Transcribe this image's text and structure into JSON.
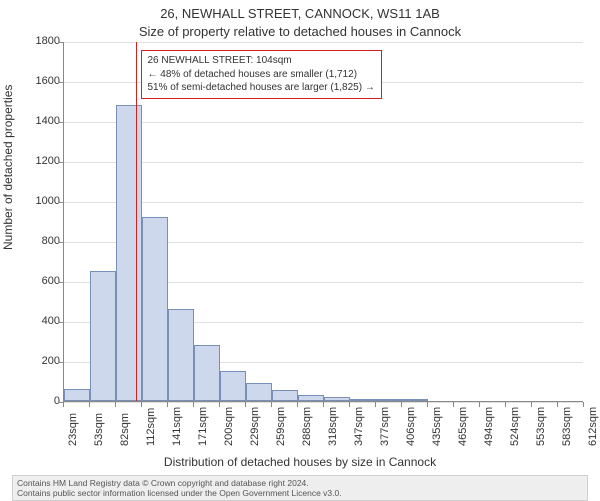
{
  "header": {
    "title_line1": "26, NEWHALL STREET, CANNOCK, WS11 1AB",
    "title_line2": "Size of property relative to detached houses in Cannock"
  },
  "axes": {
    "y_label": "Number of detached properties",
    "x_label": "Distribution of detached houses by size in Cannock"
  },
  "histogram": {
    "type": "histogram",
    "ylim": [
      0,
      1800
    ],
    "ytick_step": 200,
    "y_ticks": [
      0,
      200,
      400,
      600,
      800,
      1000,
      1200,
      1400,
      1600,
      1800
    ],
    "x_tick_labels": [
      "23sqm",
      "53sqm",
      "82sqm",
      "112sqm",
      "141sqm",
      "171sqm",
      "200sqm",
      "229sqm",
      "259sqm",
      "288sqm",
      "318sqm",
      "347sqm",
      "377sqm",
      "406sqm",
      "435sqm",
      "465sqm",
      "494sqm",
      "524sqm",
      "553sqm",
      "583sqm",
      "612sqm"
    ],
    "values": [
      60,
      650,
      1480,
      920,
      460,
      280,
      150,
      90,
      55,
      30,
      20,
      12,
      10,
      8,
      0,
      0,
      0,
      0,
      0,
      0
    ],
    "bar_fill": "#cdd8ec",
    "bar_stroke": "#7a8fb5",
    "background_color": "#ffffff",
    "grid_color": "#e0e0e0",
    "label_fontsize": 12,
    "tick_fontsize": 11,
    "title_fontsize": 13
  },
  "reference": {
    "value_sqm": 104,
    "line_color": "#d62020"
  },
  "annotation": {
    "line1": "26 NEWHALL STREET: 104sqm",
    "line2": "← 48% of detached houses are smaller (1,712)",
    "line3": "51% of semi-detached houses are larger (1,825) →",
    "border_color": "#d62020",
    "background_color": "#ffffff",
    "fontsize": 10
  },
  "footer": {
    "line1": "Contains HM Land Registry data © Crown copyright and database right 2024.",
    "line2": "Contains public sector information licensed under the Open Government Licence v3.0.",
    "background_color": "#eeeeee",
    "border_color": "#d0d0d0",
    "fontsize": 8.5
  }
}
